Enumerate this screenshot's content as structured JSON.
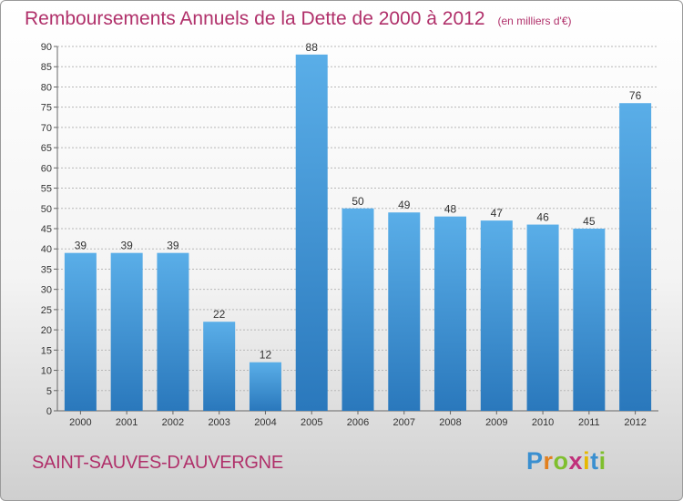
{
  "title": "Remboursements Annuels de la Dette de 2000 à 2012",
  "unit": "(en milliers d'€)",
  "commune": "SAINT-SAUVES-D'AUVERGNE",
  "logo": {
    "letters": [
      "P",
      "r",
      "o",
      "x",
      "i",
      "t",
      "i"
    ]
  },
  "colors": {
    "title": "#b0306a",
    "bar_top": "#5aaee8",
    "bar_bottom": "#2a78bc",
    "grid": "#b8b8b8"
  },
  "chart_data": {
    "type": "bar",
    "title": "Remboursements Annuels de la Dette de 2000 à 2012",
    "xlabel": "",
    "ylabel": "",
    "categories": [
      "2000",
      "2001",
      "2002",
      "2003",
      "2004",
      "2005",
      "2006",
      "2007",
      "2008",
      "2009",
      "2010",
      "2011",
      "2012"
    ],
    "values": [
      39,
      39,
      39,
      22,
      12,
      88,
      50,
      49,
      48,
      47,
      46,
      45,
      76
    ],
    "ylim": [
      0,
      90
    ],
    "yticks": [
      0,
      5,
      10,
      15,
      20,
      25,
      30,
      35,
      40,
      45,
      50,
      55,
      60,
      65,
      70,
      75,
      80,
      85,
      90
    ],
    "grid": true,
    "legend": "none"
  }
}
